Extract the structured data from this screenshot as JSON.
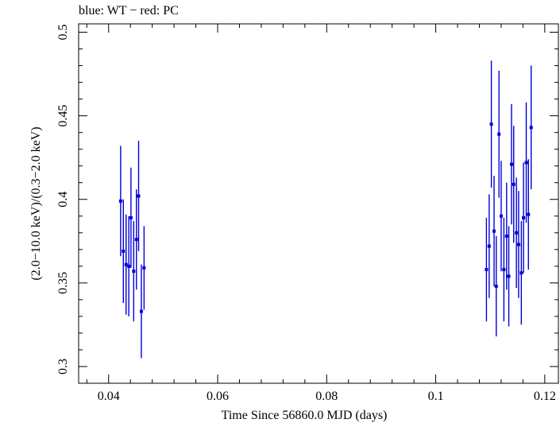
{
  "chart_data": {
    "type": "scatter",
    "title": "blue: WT − red: PC",
    "xlabel": "Time Since 56860.0 MJD (days)",
    "ylabel": "(2.0−10.0 keV)/(0.3−2.0 keV)",
    "xlim": [
      0.0345,
      0.1225
    ],
    "ylim": [
      0.29,
      0.505
    ],
    "x_ticks": [
      0.04,
      0.06,
      0.08,
      0.1,
      0.12
    ],
    "x_tick_labels": [
      "0.04",
      "0.06",
      "0.08",
      "0.1",
      "0.12"
    ],
    "y_ticks": [
      0.3,
      0.35,
      0.4,
      0.45,
      0.5
    ],
    "y_tick_labels": [
      "0.3",
      "0.35",
      "0.4",
      "0.45",
      "0.5"
    ],
    "grid": false,
    "series": [
      {
        "name": "WT",
        "color": "#0000dd",
        "points": [
          {
            "x": 0.0422,
            "y": 0.399,
            "yerr": 0.033
          },
          {
            "x": 0.0427,
            "y": 0.369,
            "yerr": 0.031
          },
          {
            "x": 0.0432,
            "y": 0.361,
            "yerr": 0.03
          },
          {
            "x": 0.0437,
            "y": 0.36,
            "yerr": 0.03
          },
          {
            "x": 0.0441,
            "y": 0.389,
            "yerr": 0.03
          },
          {
            "x": 0.0446,
            "y": 0.357,
            "yerr": 0.03
          },
          {
            "x": 0.0451,
            "y": 0.376,
            "yerr": 0.03
          },
          {
            "x": 0.0455,
            "y": 0.402,
            "yerr": 0.033
          },
          {
            "x": 0.046,
            "y": 0.333,
            "yerr": 0.028
          },
          {
            "x": 0.0465,
            "y": 0.359,
            "yerr": 0.025
          },
          {
            "x": 0.1093,
            "y": 0.358,
            "yerr": 0.031
          },
          {
            "x": 0.1098,
            "y": 0.372,
            "yerr": 0.031
          },
          {
            "x": 0.1102,
            "y": 0.445,
            "yerr": 0.038
          },
          {
            "x": 0.1107,
            "y": 0.381,
            "yerr": 0.033
          },
          {
            "x": 0.1111,
            "y": 0.348,
            "yerr": 0.03
          },
          {
            "x": 0.1116,
            "y": 0.439,
            "yerr": 0.038
          },
          {
            "x": 0.112,
            "y": 0.39,
            "yerr": 0.033
          },
          {
            "x": 0.1125,
            "y": 0.358,
            "yerr": 0.031
          },
          {
            "x": 0.113,
            "y": 0.378,
            "yerr": 0.032
          },
          {
            "x": 0.1134,
            "y": 0.354,
            "yerr": 0.03
          },
          {
            "x": 0.1139,
            "y": 0.421,
            "yerr": 0.036
          },
          {
            "x": 0.1143,
            "y": 0.409,
            "yerr": 0.035
          },
          {
            "x": 0.1148,
            "y": 0.38,
            "yerr": 0.033
          },
          {
            "x": 0.1152,
            "y": 0.373,
            "yerr": 0.032
          },
          {
            "x": 0.1157,
            "y": 0.356,
            "yerr": 0.031
          },
          {
            "x": 0.1161,
            "y": 0.389,
            "yerr": 0.033
          },
          {
            "x": 0.1166,
            "y": 0.422,
            "yerr": 0.036
          },
          {
            "x": 0.117,
            "y": 0.391,
            "yerr": 0.033
          },
          {
            "x": 0.1175,
            "y": 0.443,
            "yerr": 0.037
          }
        ]
      }
    ]
  }
}
